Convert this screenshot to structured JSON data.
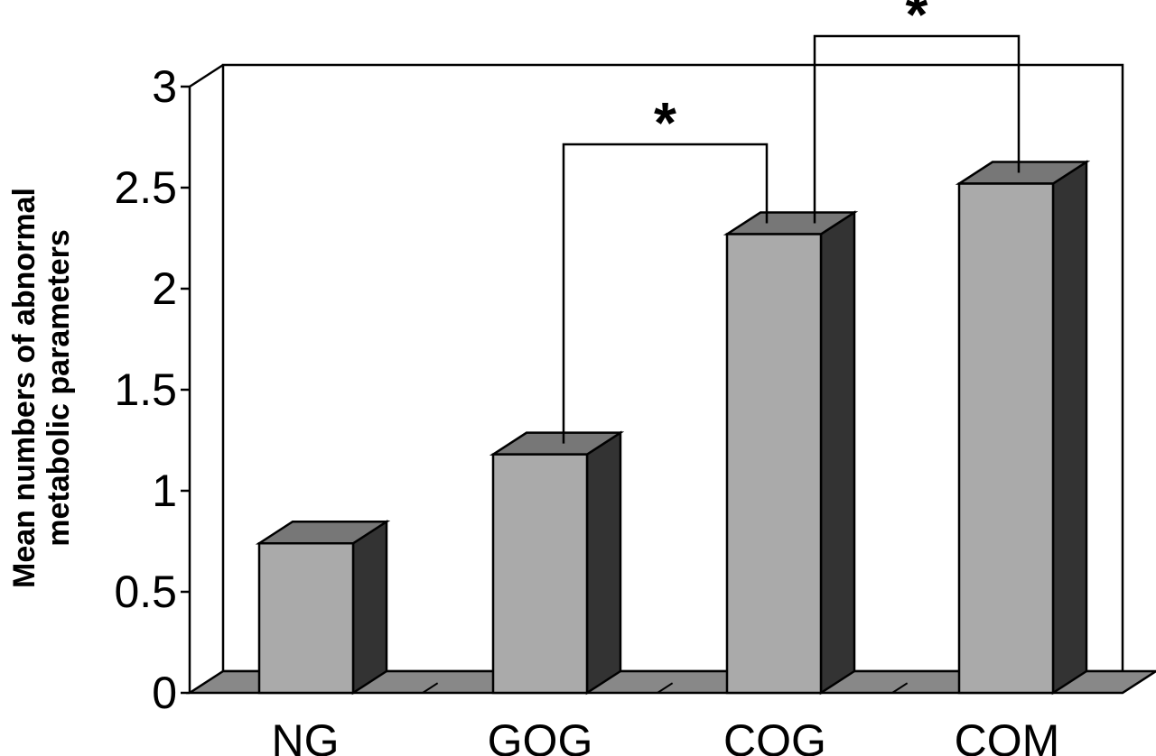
{
  "chart_data": {
    "type": "bar",
    "categories": [
      "NG",
      "GOG",
      "COG",
      "COM"
    ],
    "values": [
      0.74,
      1.18,
      2.27,
      2.52
    ],
    "ylabel_lines": [
      "Mean numbers of abnormal",
      "metabolic parameters"
    ],
    "ylim": [
      0,
      3
    ],
    "yticks": [
      "0",
      "0.5",
      "1",
      "1.5",
      "2",
      "2.5",
      "3"
    ],
    "style": "3d",
    "grid": false,
    "legend": "none",
    "colors": {
      "bar_front": "#aaaaaa",
      "bar_top": "#777777",
      "bar_side": "#333333",
      "floor": "#888888"
    },
    "annotations": [
      {
        "from": "GOG",
        "to": "COG",
        "label": "*"
      },
      {
        "from": "COG",
        "to": "COM",
        "label": "*"
      }
    ]
  }
}
